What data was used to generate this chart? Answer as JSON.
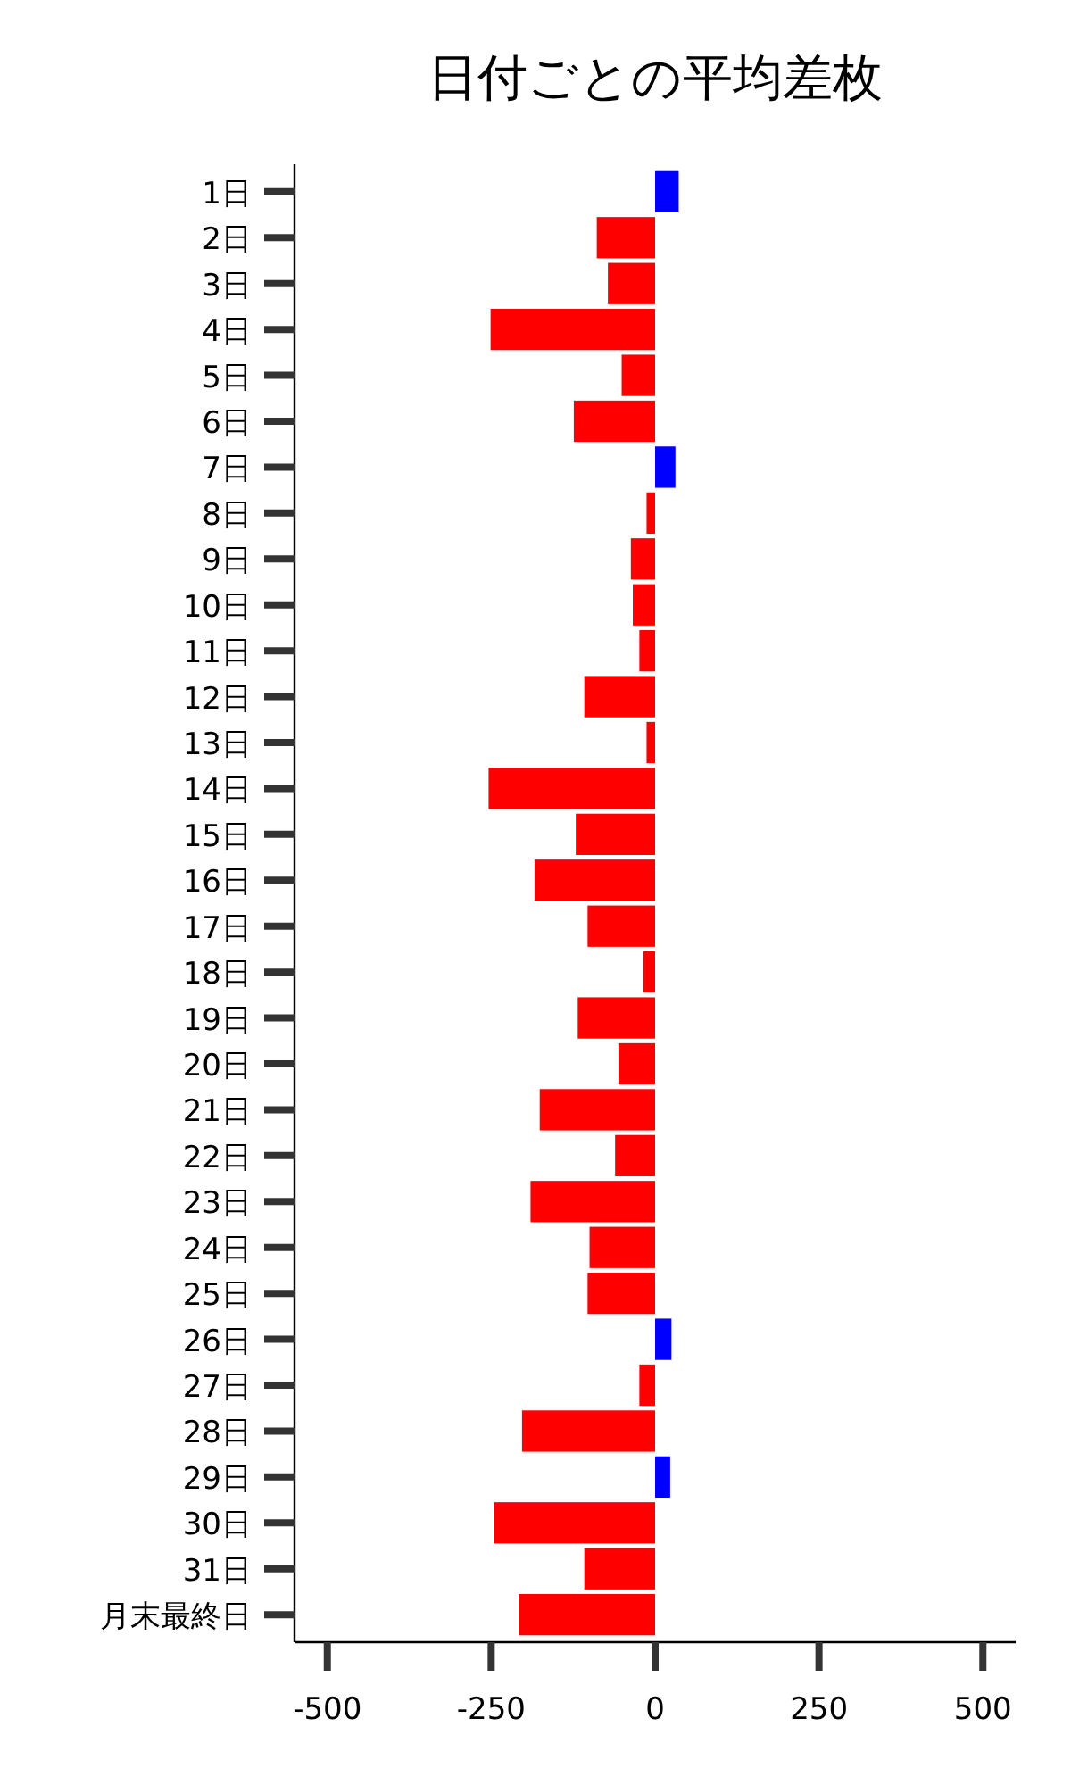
{
  "chart_data": {
    "type": "bar",
    "orientation": "horizontal",
    "title": "日付ごとの平均差枚",
    "categories": [
      "1日",
      "2日",
      "3日",
      "4日",
      "5日",
      "6日",
      "7日",
      "8日",
      "9日",
      "10日",
      "11日",
      "12日",
      "13日",
      "14日",
      "15日",
      "16日",
      "17日",
      "18日",
      "19日",
      "20日",
      "21日",
      "22日",
      "23日",
      "24日",
      "25日",
      "26日",
      "27日",
      "28日",
      "29日",
      "30日",
      "31日",
      "月末最終日"
    ],
    "values": [
      36,
      -89,
      -72,
      -251,
      -51,
      -124,
      31,
      -13,
      -37,
      -34,
      -24,
      -108,
      -13,
      -254,
      -121,
      -184,
      -103,
      -18,
      -118,
      -56,
      -176,
      -61,
      -190,
      -100,
      -103,
      25,
      -24,
      -203,
      23,
      -246,
      -108,
      -208
    ],
    "colors": [
      "#0000ff",
      "#ff0000",
      "#ff0000",
      "#ff0000",
      "#ff0000",
      "#ff0000",
      "#0000ff",
      "#ff0000",
      "#ff0000",
      "#ff0000",
      "#ff0000",
      "#ff0000",
      "#ff0000",
      "#ff0000",
      "#ff0000",
      "#ff0000",
      "#ff0000",
      "#ff0000",
      "#ff0000",
      "#ff0000",
      "#ff0000",
      "#ff0000",
      "#ff0000",
      "#ff0000",
      "#ff0000",
      "#0000ff",
      "#ff0000",
      "#ff0000",
      "#0000ff",
      "#ff0000",
      "#ff0000",
      "#ff0000"
    ],
    "xlim": [
      -550,
      550
    ],
    "xticks": [
      -500,
      -250,
      0,
      250,
      500
    ]
  }
}
